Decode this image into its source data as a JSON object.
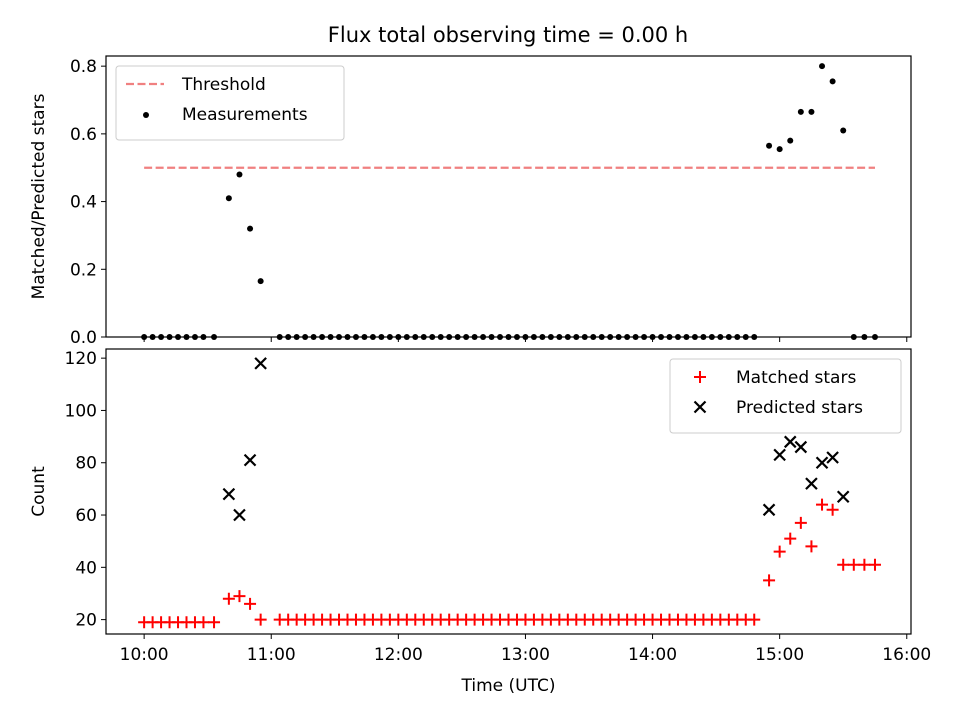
{
  "title": "Flux total observing time = 0.00 h",
  "chart_data": [
    {
      "type": "scatter",
      "ylabel": "Matched/Predicted stars",
      "xlabel": "",
      "xlim": [
        "09:42",
        "16:02"
      ],
      "ylim": [
        0,
        0.83
      ],
      "yticks": [
        "0.0",
        "0.2",
        "0.4",
        "0.6",
        "0.8"
      ],
      "xticks": [
        "10:00",
        "11:00",
        "12:00",
        "13:00",
        "14:00",
        "15:00",
        "16:00"
      ],
      "legend_position": "top-left",
      "threshold": {
        "name": "Threshold",
        "value": 0.5,
        "x_range": [
          "10:00",
          "15:45"
        ],
        "color": "#f08080",
        "style": "dashed"
      },
      "series": [
        {
          "name": "Measurements",
          "color": "#000000",
          "marker": "dot",
          "points": [
            [
              "10:00",
              0
            ],
            [
              "10:04",
              0
            ],
            [
              "10:08",
              0
            ],
            [
              "10:12",
              0
            ],
            [
              "10:16",
              0
            ],
            [
              "10:20",
              0
            ],
            [
              "10:24",
              0
            ],
            [
              "10:28",
              0
            ],
            [
              "10:33",
              0
            ],
            [
              "10:40",
              0.41
            ],
            [
              "10:45",
              0.48
            ],
            [
              "10:50",
              0.32
            ],
            [
              "10:55",
              0.165
            ],
            [
              "11:04",
              0
            ],
            [
              "11:08",
              0
            ],
            [
              "11:12",
              0
            ],
            [
              "11:16",
              0
            ],
            [
              "11:20",
              0
            ],
            [
              "11:24",
              0
            ],
            [
              "11:28",
              0
            ],
            [
              "11:32",
              0
            ],
            [
              "11:36",
              0
            ],
            [
              "11:40",
              0
            ],
            [
              "11:44",
              0
            ],
            [
              "11:48",
              0
            ],
            [
              "11:52",
              0
            ],
            [
              "11:56",
              0
            ],
            [
              "12:00",
              0
            ],
            [
              "12:04",
              0
            ],
            [
              "12:08",
              0
            ],
            [
              "12:12",
              0
            ],
            [
              "12:16",
              0
            ],
            [
              "12:20",
              0
            ],
            [
              "12:24",
              0
            ],
            [
              "12:28",
              0
            ],
            [
              "12:32",
              0
            ],
            [
              "12:36",
              0
            ],
            [
              "12:40",
              0
            ],
            [
              "12:44",
              0
            ],
            [
              "12:48",
              0
            ],
            [
              "12:52",
              0
            ],
            [
              "12:56",
              0
            ],
            [
              "13:00",
              0
            ],
            [
              "13:04",
              0
            ],
            [
              "13:08",
              0
            ],
            [
              "13:12",
              0
            ],
            [
              "13:16",
              0
            ],
            [
              "13:20",
              0
            ],
            [
              "13:24",
              0
            ],
            [
              "13:28",
              0
            ],
            [
              "13:32",
              0
            ],
            [
              "13:36",
              0
            ],
            [
              "13:40",
              0
            ],
            [
              "13:44",
              0
            ],
            [
              "13:48",
              0
            ],
            [
              "13:52",
              0
            ],
            [
              "13:56",
              0
            ],
            [
              "14:00",
              0
            ],
            [
              "14:04",
              0
            ],
            [
              "14:08",
              0
            ],
            [
              "14:12",
              0
            ],
            [
              "14:16",
              0
            ],
            [
              "14:20",
              0
            ],
            [
              "14:24",
              0
            ],
            [
              "14:28",
              0
            ],
            [
              "14:32",
              0
            ],
            [
              "14:36",
              0
            ],
            [
              "14:40",
              0
            ],
            [
              "14:44",
              0
            ],
            [
              "14:48",
              0
            ],
            [
              "14:55",
              0.565
            ],
            [
              "15:00",
              0.555
            ],
            [
              "15:05",
              0.58
            ],
            [
              "15:10",
              0.665
            ],
            [
              "15:15",
              0.665
            ],
            [
              "15:20",
              0.8
            ],
            [
              "15:25",
              0.755
            ],
            [
              "15:30",
              0.61
            ],
            [
              "15:35",
              0
            ],
            [
              "15:40",
              0
            ],
            [
              "15:45",
              0
            ]
          ]
        }
      ]
    },
    {
      "type": "scatter",
      "ylabel": "Count",
      "xlabel": "Time (UTC)",
      "xlim": [
        "09:42",
        "16:02"
      ],
      "ylim": [
        14.5,
        123.5
      ],
      "yticks": [
        "20",
        "40",
        "60",
        "80",
        "100",
        "120"
      ],
      "xticks": [
        "10:00",
        "11:00",
        "12:00",
        "13:00",
        "14:00",
        "15:00",
        "16:00"
      ],
      "legend_position": "top-right",
      "series": [
        {
          "name": "Matched stars",
          "color": "#ff0000",
          "marker": "plus",
          "points": [
            [
              "10:00",
              19
            ],
            [
              "10:04",
              19
            ],
            [
              "10:08",
              19
            ],
            [
              "10:12",
              19
            ],
            [
              "10:16",
              19
            ],
            [
              "10:20",
              19
            ],
            [
              "10:24",
              19
            ],
            [
              "10:28",
              19
            ],
            [
              "10:33",
              19
            ],
            [
              "10:40",
              28
            ],
            [
              "10:45",
              29
            ],
            [
              "10:50",
              26
            ],
            [
              "10:55",
              20
            ],
            [
              "11:04",
              20
            ],
            [
              "11:08",
              20
            ],
            [
              "11:12",
              20
            ],
            [
              "11:16",
              20
            ],
            [
              "11:20",
              20
            ],
            [
              "11:24",
              20
            ],
            [
              "11:28",
              20
            ],
            [
              "11:32",
              20
            ],
            [
              "11:36",
              20
            ],
            [
              "11:40",
              20
            ],
            [
              "11:44",
              20
            ],
            [
              "11:48",
              20
            ],
            [
              "11:52",
              20
            ],
            [
              "11:56",
              20
            ],
            [
              "12:00",
              20
            ],
            [
              "12:04",
              20
            ],
            [
              "12:08",
              20
            ],
            [
              "12:12",
              20
            ],
            [
              "12:16",
              20
            ],
            [
              "12:20",
              20
            ],
            [
              "12:24",
              20
            ],
            [
              "12:28",
              20
            ],
            [
              "12:32",
              20
            ],
            [
              "12:36",
              20
            ],
            [
              "12:40",
              20
            ],
            [
              "12:44",
              20
            ],
            [
              "12:48",
              20
            ],
            [
              "12:52",
              20
            ],
            [
              "12:56",
              20
            ],
            [
              "13:00",
              20
            ],
            [
              "13:04",
              20
            ],
            [
              "13:08",
              20
            ],
            [
              "13:12",
              20
            ],
            [
              "13:16",
              20
            ],
            [
              "13:20",
              20
            ],
            [
              "13:24",
              20
            ],
            [
              "13:28",
              20
            ],
            [
              "13:32",
              20
            ],
            [
              "13:36",
              20
            ],
            [
              "13:40",
              20
            ],
            [
              "13:44",
              20
            ],
            [
              "13:48",
              20
            ],
            [
              "13:52",
              20
            ],
            [
              "13:56",
              20
            ],
            [
              "14:00",
              20
            ],
            [
              "14:04",
              20
            ],
            [
              "14:08",
              20
            ],
            [
              "14:12",
              20
            ],
            [
              "14:16",
              20
            ],
            [
              "14:20",
              20
            ],
            [
              "14:24",
              20
            ],
            [
              "14:28",
              20
            ],
            [
              "14:32",
              20
            ],
            [
              "14:36",
              20
            ],
            [
              "14:40",
              20
            ],
            [
              "14:44",
              20
            ],
            [
              "14:48",
              20
            ],
            [
              "14:55",
              35
            ],
            [
              "15:00",
              46
            ],
            [
              "15:05",
              51
            ],
            [
              "15:10",
              57
            ],
            [
              "15:15",
              48
            ],
            [
              "15:20",
              64
            ],
            [
              "15:25",
              62
            ],
            [
              "15:30",
              41
            ],
            [
              "15:35",
              41
            ],
            [
              "15:40",
              41
            ],
            [
              "15:45",
              41
            ]
          ]
        },
        {
          "name": "Predicted stars",
          "color": "#000000",
          "marker": "x",
          "points": [
            [
              "10:40",
              68
            ],
            [
              "10:45",
              60
            ],
            [
              "10:50",
              81
            ],
            [
              "10:55",
              118
            ],
            [
              "14:55",
              62
            ],
            [
              "15:00",
              83
            ],
            [
              "15:05",
              88
            ],
            [
              "15:10",
              86
            ],
            [
              "15:15",
              72
            ],
            [
              "15:20",
              80
            ],
            [
              "15:25",
              82
            ],
            [
              "15:30",
              67
            ]
          ]
        }
      ]
    }
  ]
}
